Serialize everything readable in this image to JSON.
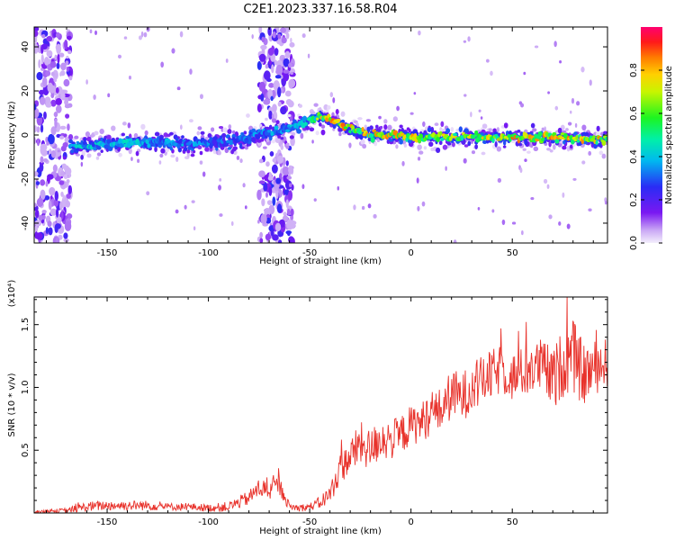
{
  "title": "C2E1.2023.337.16.58.R04",
  "chart_data": [
    {
      "type": "heatmap",
      "title": "C2E1.2023.337.16.58.R04",
      "xlabel": "Height of straight line (km)",
      "ylabel": "Frequency (Hz)",
      "xlim": [
        -186,
        97
      ],
      "ylim": [
        -49,
        49
      ],
      "x_ticks": [
        -150,
        -100,
        -50,
        0,
        50
      ],
      "y_ticks": [
        -40,
        -20,
        0,
        20,
        40
      ],
      "colorbar": {
        "label": "Normalized spectral amplitude",
        "range": [
          0.0,
          1.0
        ],
        "ticks": [
          "0.0",
          "0.2",
          "0.4",
          "0.6",
          "0.8"
        ],
        "colormap": "rainbow (white-violet-blue-cyan-green-yellow-orange-red-magenta)"
      },
      "signal_track": {
        "x": [
          -168,
          -150,
          -130,
          -110,
          -90,
          -75,
          -60,
          -50,
          -45,
          -40,
          -30,
          -20,
          -10,
          0,
          10,
          30,
          50,
          70,
          95
        ],
        "frequency_hz": [
          -5,
          -4,
          -3,
          -4,
          -3,
          0,
          3,
          7,
          8,
          7,
          3,
          0,
          0,
          -1,
          -1,
          -1,
          -1,
          -1,
          -2
        ],
        "peak_amplitude": [
          0.45,
          0.5,
          0.45,
          0.4,
          0.35,
          0.4,
          0.45,
          0.5,
          0.85,
          0.95,
          0.9,
          0.85,
          0.9,
          0.85,
          0.8,
          0.8,
          0.9,
          0.9,
          0.85
        ]
      },
      "noise_bands_x": [
        [
          -186,
          -168
        ],
        [
          -75,
          -58
        ]
      ],
      "grid": false
    },
    {
      "type": "line",
      "xlabel": "Height of straight line (km)",
      "ylabel": "SNR (10 * v/v)",
      "y_multiplier": "(x10⁴)",
      "xlim": [
        -186,
        97
      ],
      "ylim": [
        0,
        1.72
      ],
      "x_ticks": [
        -150,
        -100,
        -50,
        0,
        50
      ],
      "y_ticks": [
        "0.5",
        "1.0",
        "1.5"
      ],
      "series": [
        {
          "color": "#e8322b",
          "x": [
            -186,
            -170,
            -160,
            -150,
            -140,
            -130,
            -120,
            -110,
            -100,
            -90,
            -80,
            -75,
            -70,
            -65,
            -60,
            -55,
            -50,
            -45,
            -40,
            -35,
            -30,
            -25,
            -20,
            -15,
            -10,
            -5,
            0,
            5,
            10,
            15,
            20,
            25,
            30,
            35,
            40,
            45,
            50,
            55,
            60,
            65,
            70,
            75,
            80,
            85,
            90,
            97
          ],
          "values": [
            0.01,
            0.02,
            0.05,
            0.06,
            0.06,
            0.06,
            0.05,
            0.05,
            0.04,
            0.05,
            0.12,
            0.2,
            0.18,
            0.22,
            0.05,
            0.04,
            0.05,
            0.08,
            0.15,
            0.35,
            0.45,
            0.55,
            0.5,
            0.6,
            0.58,
            0.62,
            0.7,
            0.72,
            0.8,
            0.82,
            0.95,
            0.92,
            1.0,
            1.05,
            1.1,
            1.15,
            1.08,
            1.12,
            1.15,
            1.18,
            1.05,
            1.2,
            1.25,
            1.1,
            1.15,
            1.2
          ],
          "noise_amplitude": [
            0.01,
            0.02,
            0.04,
            0.04,
            0.04,
            0.04,
            0.03,
            0.03,
            0.03,
            0.04,
            0.06,
            0.08,
            0.08,
            0.08,
            0.03,
            0.03,
            0.03,
            0.05,
            0.08,
            0.12,
            0.14,
            0.18,
            0.16,
            0.18,
            0.16,
            0.16,
            0.16,
            0.16,
            0.18,
            0.18,
            0.2,
            0.2,
            0.2,
            0.2,
            0.2,
            0.2,
            0.2,
            0.2,
            0.22,
            0.22,
            0.25,
            0.28,
            0.3,
            0.25,
            0.22,
            0.2
          ]
        }
      ],
      "grid": false
    }
  ]
}
